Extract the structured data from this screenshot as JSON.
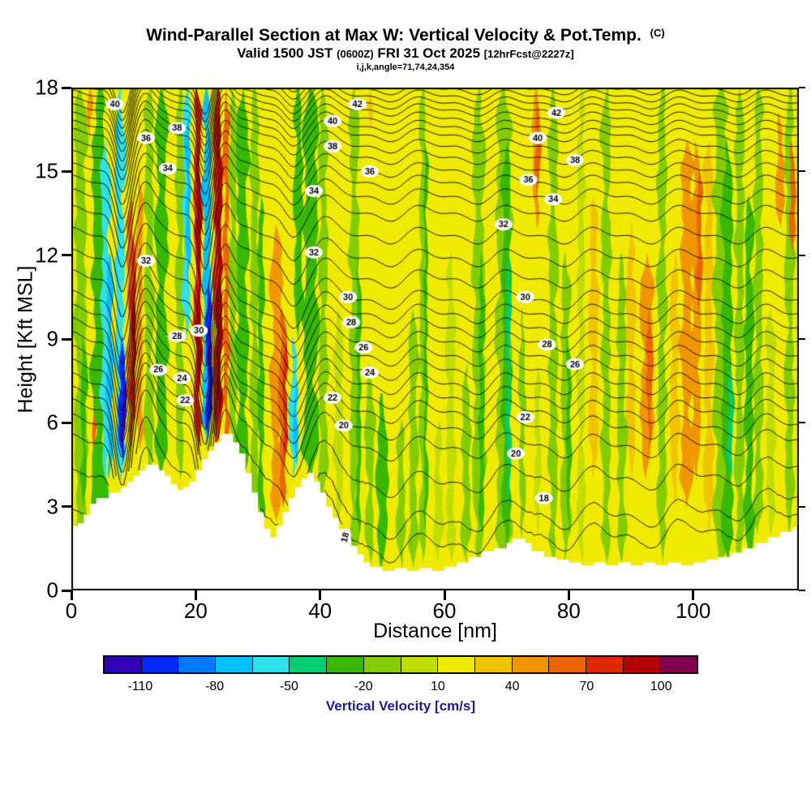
{
  "header": {
    "title_main": "Wind-Parallel Section at Max W: Vertical Velocity & Pot.Temp.",
    "title_suffix": "(C)",
    "valid_pre": "Valid 1500 JST",
    "valid_z": "(0600Z)",
    "valid_date": "FRI 31 Oct 2025",
    "valid_fcst": "[12hrFcst@2227z]",
    "info_line": "i,j,k,angle=71,74,24,354"
  },
  "chart_data": {
    "type": "heatmap",
    "title": "Wind-Parallel Section at Max W: Vertical Velocity & Pot.Temp. (C)",
    "subtitle": "Valid 1500 JST (0600Z) FRI 31 Oct 2025 [12hrFcst@2227z]",
    "subtitle2": "i,j,k,angle=71,74,24,354",
    "xlabel": "Distance [nm]",
    "ylabel": "Height [Kft MSL]",
    "xlim": [
      0,
      117
    ],
    "ylim": [
      0,
      18
    ],
    "xticks": [
      0,
      20,
      40,
      60,
      80,
      100
    ],
    "yticks": [
      0,
      3,
      6,
      9,
      12,
      15,
      18
    ],
    "fill_field": "Vertical Velocity [cm/s]",
    "contour_field": "Potential Temperature (C)",
    "contour_interval": 1,
    "contour_label_values": [
      18,
      20,
      22,
      24,
      26,
      28,
      30,
      32,
      34,
      36,
      38,
      40,
      42
    ],
    "background_fill": "#f0ea00",
    "colorbar": {
      "label": "Vertical Velocity [cm/s]",
      "levels": [
        -125,
        -110,
        -95,
        -80,
        -65,
        -50,
        -35,
        -20,
        -5,
        10,
        25,
        40,
        55,
        70,
        85,
        100,
        115
      ],
      "colors": [
        "#3200b4",
        "#0028ff",
        "#0078ff",
        "#00c0ff",
        "#30e0e8",
        "#00cc70",
        "#38b800",
        "#84cc00",
        "#c0dc00",
        "#f0ea00",
        "#f0c400",
        "#f09600",
        "#ec6400",
        "#e02800",
        "#b40000",
        "#820050"
      ],
      "ticks": [
        {
          "label": "-110",
          "b": 1
        },
        {
          "label": "-80",
          "b": 3
        },
        {
          "label": "-50",
          "b": 5
        },
        {
          "label": "-20",
          "b": 7
        },
        {
          "label": "10",
          "b": 9
        },
        {
          "label": "40",
          "b": 11
        },
        {
          "label": "70",
          "b": 13
        },
        {
          "label": "100",
          "b": 15
        }
      ]
    },
    "theta_base_heights": [
      [
        17,
        1.1
      ],
      [
        18,
        2.0
      ],
      [
        19,
        3.6
      ],
      [
        20,
        5.0
      ],
      [
        21,
        5.8
      ],
      [
        22,
        6.4
      ],
      [
        23,
        6.9
      ],
      [
        24,
        7.4
      ],
      [
        25,
        7.9
      ],
      [
        26,
        8.4
      ],
      [
        27,
        8.9
      ],
      [
        28,
        9.4
      ],
      [
        29,
        9.9
      ],
      [
        30,
        10.4
      ],
      [
        31,
        11.15
      ],
      [
        32,
        11.9
      ],
      [
        33,
        12.7
      ],
      [
        34,
        13.5
      ],
      [
        35,
        14.1
      ],
      [
        36,
        14.6
      ],
      [
        37,
        15.05
      ],
      [
        38,
        15.5
      ],
      [
        39,
        15.9
      ],
      [
        40,
        16.3
      ],
      [
        41,
        16.6
      ],
      [
        42,
        16.9
      ],
      [
        43,
        17.2
      ],
      [
        44,
        17.45
      ],
      [
        45,
        17.7
      ],
      [
        46,
        17.95
      ],
      [
        47,
        18.2
      ],
      [
        48,
        18.45
      ]
    ],
    "contour_labels": [
      [
        40,
        7,
        17.4
      ],
      [
        36,
        12,
        16.2
      ],
      [
        38,
        17,
        16.55
      ],
      [
        34,
        15.5,
        15.1
      ],
      [
        42,
        46,
        17.4
      ],
      [
        40,
        42,
        16.8
      ],
      [
        38,
        42,
        15.9
      ],
      [
        36,
        48,
        15.0
      ],
      [
        34,
        39,
        14.3
      ],
      [
        42,
        78,
        17.1
      ],
      [
        40,
        75,
        16.2
      ],
      [
        38,
        81,
        15.4
      ],
      [
        36,
        73.5,
        14.7
      ],
      [
        34,
        77.5,
        14.0
      ],
      [
        32,
        12,
        11.8
      ],
      [
        32,
        39,
        12.1
      ],
      [
        32,
        69.5,
        13.1
      ],
      [
        30,
        20.5,
        9.3
      ],
      [
        30,
        44.5,
        10.5
      ],
      [
        30,
        73,
        10.5
      ],
      [
        28,
        17,
        9.1
      ],
      [
        28,
        45,
        9.6
      ],
      [
        28,
        76.5,
        8.8
      ],
      [
        26,
        14,
        7.9
      ],
      [
        26,
        47,
        8.7
      ],
      [
        26,
        81,
        8.1
      ],
      [
        24,
        17.8,
        7.6
      ],
      [
        24,
        48,
        7.8
      ],
      [
        22,
        18.3,
        6.8
      ],
      [
        22,
        42,
        6.9
      ],
      [
        22,
        73,
        6.2
      ],
      [
        20,
        43.8,
        5.9
      ],
      [
        20,
        71.5,
        4.9
      ],
      [
        18,
        44,
        1.9,
        -75
      ],
      [
        18,
        76,
        3.3
      ]
    ],
    "terrain_profile": [
      [
        0,
        2.3
      ],
      [
        1,
        2.4
      ],
      [
        2,
        2.7
      ],
      [
        3,
        3.1
      ],
      [
        4,
        3.3
      ],
      [
        5,
        3.3
      ],
      [
        6,
        3.5
      ],
      [
        7,
        3.5
      ],
      [
        8,
        3.7
      ],
      [
        9,
        3.9
      ],
      [
        10,
        4.1
      ],
      [
        11,
        4.3
      ],
      [
        12,
        4.5
      ],
      [
        13,
        4.5
      ],
      [
        14,
        4.3
      ],
      [
        15,
        4.1
      ],
      [
        16,
        3.8
      ],
      [
        17,
        3.6
      ],
      [
        18,
        3.7
      ],
      [
        19,
        3.9
      ],
      [
        20,
        4.3
      ],
      [
        21,
        4.7
      ],
      [
        22,
        5.0
      ],
      [
        23,
        5.3
      ],
      [
        24,
        5.6
      ],
      [
        25,
        5.6
      ],
      [
        26,
        5.3
      ],
      [
        27,
        4.9
      ],
      [
        28,
        4.2
      ],
      [
        29,
        3.5
      ],
      [
        30,
        2.8
      ],
      [
        31,
        2.2
      ],
      [
        32,
        1.9
      ],
      [
        33,
        2.3
      ],
      [
        34,
        2.8
      ],
      [
        35,
        3.3
      ],
      [
        36,
        3.7
      ],
      [
        37,
        4.0
      ],
      [
        38,
        4.2
      ],
      [
        39,
        3.9
      ],
      [
        40,
        3.5
      ],
      [
        41,
        3.0
      ],
      [
        42,
        2.6
      ],
      [
        43,
        2.2
      ],
      [
        44,
        1.9
      ],
      [
        45,
        1.6
      ],
      [
        46,
        1.3
      ],
      [
        47,
        1.0
      ],
      [
        48,
        0.85
      ],
      [
        50,
        0.7
      ],
      [
        52,
        0.8
      ],
      [
        54,
        0.7
      ],
      [
        56,
        0.8
      ],
      [
        58,
        0.7
      ],
      [
        60,
        0.85
      ],
      [
        62,
        1.0
      ],
      [
        64,
        1.2
      ],
      [
        66,
        1.4
      ],
      [
        68,
        1.5
      ],
      [
        70,
        1.7
      ],
      [
        71,
        1.85
      ],
      [
        73,
        1.7
      ],
      [
        74,
        1.4
      ],
      [
        76,
        1.2
      ],
      [
        78,
        1.1
      ],
      [
        80,
        1.0
      ],
      [
        82,
        0.9
      ],
      [
        84,
        1.0
      ],
      [
        86,
        0.9
      ],
      [
        88,
        1.0
      ],
      [
        90,
        0.9
      ],
      [
        92,
        1.0
      ],
      [
        94,
        0.9
      ],
      [
        96,
        1.0
      ],
      [
        98,
        0.9
      ],
      [
        100,
        1.0
      ],
      [
        102,
        1.1
      ],
      [
        104,
        1.2
      ],
      [
        106,
        1.35
      ],
      [
        108,
        1.5
      ],
      [
        110,
        1.7
      ],
      [
        112,
        1.9
      ],
      [
        114,
        2.1
      ],
      [
        116,
        2.25
      ],
      [
        117,
        2.3
      ]
    ],
    "streaks_format": "x_nm,width_nm,y0_kft,y1_kft,color_index",
    "streaks": [
      [
        1.5,
        2,
        0,
        18,
        7
      ],
      [
        2,
        1,
        3,
        9,
        6
      ],
      [
        3,
        1.2,
        16.2,
        18,
        11
      ],
      [
        3.8,
        0.8,
        3.5,
        7,
        12
      ],
      [
        4.5,
        2.5,
        0,
        18,
        6
      ],
      [
        5.5,
        1.5,
        4,
        16,
        4
      ],
      [
        6.2,
        1,
        4,
        12,
        3
      ],
      [
        7.8,
        1.6,
        4,
        18,
        4
      ],
      [
        8.2,
        1.2,
        4.5,
        9,
        1
      ],
      [
        8.45,
        0.7,
        5,
        7.5,
        0
      ],
      [
        9.6,
        1.3,
        5,
        14,
        12
      ],
      [
        9.9,
        0.8,
        6,
        12.5,
        13
      ],
      [
        10.1,
        0.5,
        7,
        11,
        14
      ],
      [
        11,
        1,
        5,
        15,
        11
      ],
      [
        12.5,
        1.5,
        4,
        18,
        7
      ],
      [
        14.5,
        2,
        4,
        18,
        6
      ],
      [
        17.5,
        1.5,
        4,
        18,
        7
      ],
      [
        18.5,
        1.2,
        9,
        18,
        4
      ],
      [
        18.8,
        0.8,
        11,
        17,
        3
      ],
      [
        20.3,
        1.2,
        5,
        18,
        13
      ],
      [
        20.5,
        0.8,
        7,
        16,
        14
      ],
      [
        21.8,
        1.4,
        5,
        18,
        3
      ],
      [
        22.1,
        1,
        5.5,
        11,
        1
      ],
      [
        22.35,
        0.6,
        6,
        9.5,
        0
      ],
      [
        23.5,
        1.4,
        5,
        18,
        13
      ],
      [
        23.8,
        0.9,
        6,
        17,
        14
      ],
      [
        24.9,
        0.9,
        5,
        18,
        12
      ],
      [
        26,
        1.5,
        5,
        18,
        7
      ],
      [
        27.5,
        2,
        4,
        18,
        6
      ],
      [
        29.5,
        1.5,
        2,
        18,
        7
      ],
      [
        30.5,
        1,
        2,
        14,
        6
      ],
      [
        33,
        2,
        2.5,
        13,
        11
      ],
      [
        34,
        1.3,
        3,
        10,
        12
      ],
      [
        34.4,
        0.7,
        4.5,
        9,
        13
      ],
      [
        35.8,
        1.4,
        4,
        9,
        4
      ],
      [
        36.1,
        0.8,
        4.5,
        7.5,
        3
      ],
      [
        36.5,
        1.5,
        9,
        18,
        6
      ],
      [
        38.5,
        2.5,
        4,
        18,
        6
      ],
      [
        40.5,
        1.5,
        3,
        18,
        7
      ],
      [
        43,
        1.5,
        2,
        10,
        8
      ],
      [
        45.5,
        1.5,
        1,
        18,
        7
      ],
      [
        46.2,
        0.8,
        2,
        12,
        6
      ],
      [
        48,
        1.5,
        1,
        8,
        7
      ],
      [
        48,
        1,
        16.5,
        18,
        10
      ],
      [
        50,
        2,
        0.8,
        7,
        6
      ],
      [
        53,
        1.5,
        0.8,
        6,
        7
      ],
      [
        55,
        1.5,
        0.8,
        10,
        7
      ],
      [
        56.5,
        1,
        1,
        18,
        7
      ],
      [
        57,
        0.6,
        2,
        16,
        6
      ],
      [
        59,
        1.5,
        1,
        6,
        8
      ],
      [
        61,
        1.5,
        1,
        12,
        8
      ],
      [
        63.5,
        1.5,
        1,
        8,
        7
      ],
      [
        65.5,
        2,
        1,
        18,
        7
      ],
      [
        66,
        1,
        2,
        12,
        6
      ],
      [
        69.5,
        2.5,
        1,
        18,
        7
      ],
      [
        70,
        1.5,
        1.5,
        16,
        6
      ],
      [
        70.3,
        0.7,
        3,
        12,
        5
      ],
      [
        72.5,
        1,
        1.8,
        10,
        7
      ],
      [
        74.8,
        1.4,
        13,
        18,
        11
      ],
      [
        75,
        0.8,
        14,
        17.5,
        12
      ],
      [
        75,
        1,
        2,
        8,
        8
      ],
      [
        77.5,
        1.5,
        1,
        18,
        7
      ],
      [
        79.5,
        1.5,
        1,
        12,
        7
      ],
      [
        80,
        0.8,
        2,
        9,
        6
      ],
      [
        82,
        1.2,
        1,
        18,
        8
      ],
      [
        84,
        1.5,
        4,
        14,
        10
      ],
      [
        86,
        1.5,
        1,
        18,
        7
      ],
      [
        88.5,
        1.5,
        1,
        12,
        7
      ],
      [
        90,
        1.5,
        4,
        13,
        10
      ],
      [
        92.5,
        2,
        4,
        12,
        11
      ],
      [
        93,
        1,
        5,
        10,
        12
      ],
      [
        95,
        1.5,
        1,
        18,
        7
      ],
      [
        97,
        1.5,
        3,
        12,
        10
      ],
      [
        99,
        2,
        3,
        16,
        11
      ],
      [
        100.5,
        1.5,
        4,
        16,
        11
      ],
      [
        101,
        1,
        10,
        15,
        12
      ],
      [
        102.5,
        1.5,
        2,
        16,
        10
      ],
      [
        104.5,
        2.5,
        0.8,
        18,
        7
      ],
      [
        105.5,
        1.8,
        1,
        16,
        6
      ],
      [
        106,
        1,
        4,
        8,
        5
      ],
      [
        107.5,
        1.5,
        1,
        18,
        7
      ],
      [
        109,
        1.5,
        1,
        14,
        6
      ],
      [
        110.5,
        1.5,
        2,
        18,
        7
      ],
      [
        112.5,
        1.5,
        2,
        10,
        8
      ],
      [
        114,
        1.5,
        13,
        17,
        11
      ],
      [
        115.5,
        1.5,
        2,
        18,
        7
      ],
      [
        116,
        1,
        12,
        16,
        12
      ]
    ]
  }
}
